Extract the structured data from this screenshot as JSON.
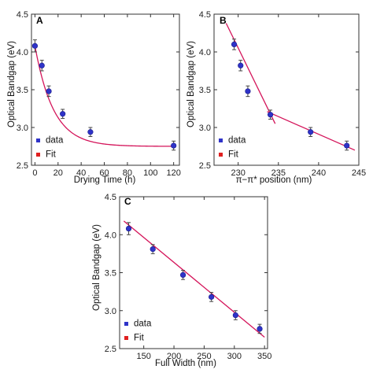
{
  "colors": {
    "data": "#2f33c8",
    "fit": "#d4145a",
    "error": "#444444",
    "fit_legend": "#e02020",
    "axis": "#333333"
  },
  "legend": {
    "data_label": "data",
    "fit_label": "Fit"
  },
  "chart_data": [
    {
      "panel": "A",
      "type": "scatter",
      "xlabel": "Drying Time (h)",
      "ylabel": "Optical Bandgap (eV)",
      "xlim": [
        -3,
        125
      ],
      "ylim": [
        2.5,
        4.5
      ],
      "xticks": [
        0,
        20,
        40,
        60,
        80,
        100,
        120
      ],
      "yticks": [
        2.5,
        3.0,
        3.5,
        4.0,
        4.5
      ],
      "ytick_labels": [
        "2.5",
        "3.0",
        "3.5",
        "4.0",
        "4.5"
      ],
      "x": [
        0,
        6,
        12,
        24,
        48,
        120
      ],
      "y": [
        4.08,
        3.82,
        3.48,
        3.18,
        2.94,
        2.76
      ],
      "yerr": [
        0.08,
        0.07,
        0.07,
        0.06,
        0.06,
        0.06
      ],
      "fit": {
        "model": "exponential",
        "y_inf": 2.75,
        "amplitude": 1.33,
        "tau": 16
      },
      "legend_position": "bottom-left",
      "grid": false
    },
    {
      "panel": "B",
      "type": "scatter",
      "xlabel": "π−π* position (nm)",
      "ylabel": "Optical Bandgap (eV)",
      "xlim": [
        227,
        245
      ],
      "ylim": [
        2.5,
        4.5
      ],
      "xticks": [
        230,
        235,
        240,
        245
      ],
      "yticks": [
        2.5,
        3.0,
        3.5,
        4.0,
        4.5
      ],
      "ytick_labels": [
        "2.5",
        "3.0",
        "3.5",
        "4.0",
        "4.5"
      ],
      "x": [
        229.5,
        230.3,
        231.2,
        234.0,
        239.0,
        243.5
      ],
      "y": [
        4.1,
        3.82,
        3.48,
        3.17,
        2.94,
        2.76
      ],
      "yerr": [
        0.07,
        0.07,
        0.07,
        0.06,
        0.06,
        0.06
      ],
      "fit_lines": [
        {
          "x": [
            228.5,
            234.6
          ],
          "y": [
            4.38,
            3.05
          ]
        },
        {
          "x": [
            233.6,
            244.5
          ],
          "y": [
            3.21,
            2.7
          ]
        }
      ],
      "legend_position": "bottom-left",
      "grid": false
    },
    {
      "panel": "C",
      "type": "scatter",
      "xlabel": "Full Width (nm)",
      "ylabel": "Optical Bandgap (eV)",
      "xlim": [
        110,
        355
      ],
      "ylim": [
        2.5,
        4.5
      ],
      "xticks": [
        150,
        200,
        250,
        300,
        350
      ],
      "yticks": [
        2.5,
        3.0,
        3.5,
        4.0,
        4.5
      ],
      "ytick_labels": [
        "2.5",
        "3.0",
        "3.5",
        "4.0",
        "4.5"
      ],
      "x": [
        125,
        165,
        215,
        262,
        302,
        342
      ],
      "y": [
        4.08,
        3.81,
        3.47,
        3.18,
        2.94,
        2.76
      ],
      "yerr": [
        0.08,
        0.06,
        0.06,
        0.06,
        0.06,
        0.06
      ],
      "fit_lines": [
        {
          "x": [
            117,
            350
          ],
          "y": [
            4.18,
            2.65
          ]
        }
      ],
      "legend_position": "bottom-left",
      "grid": false
    }
  ]
}
